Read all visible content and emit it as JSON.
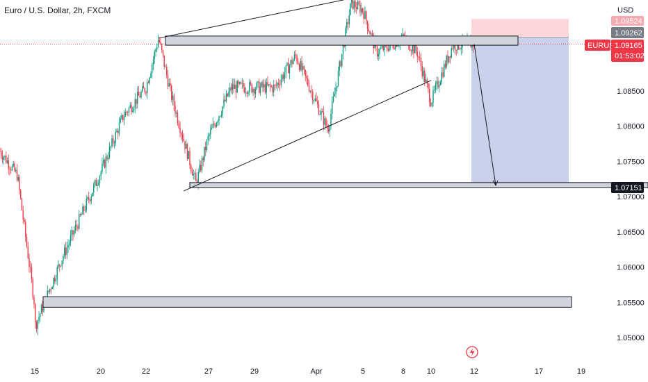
{
  "header": {
    "symbol_title": "Euro / U.S. Dollar, 2h, FXCM"
  },
  "price_scale": {
    "currency": "USD",
    "ticks": [
      "1.05000",
      "1.05500",
      "1.06000",
      "1.06500",
      "1.07000",
      "1.07500",
      "1.08000",
      "1.08500"
    ]
  },
  "time_scale": {
    "ticks": [
      "15",
      "20",
      "22",
      "27",
      "29",
      "Apr",
      "5",
      "8",
      "10",
      "12",
      "17",
      "19"
    ]
  },
  "price_tags": {
    "stop_level": "1.09524",
    "entry_level": "1.09262",
    "symbol_label": "EURUSD",
    "last_price": "1.09165",
    "countdown": "01:53:02",
    "target_level": "1.07151"
  },
  "colors": {
    "up_candle": "#089981",
    "down_candle": "#f23645",
    "short_profit_zone": "#c9d2ea",
    "short_risk_zone": "#fdd6d9",
    "zone_fill": "#d1d4dc",
    "price_line": "#f23645",
    "tag_dark": "#131722",
    "tag_gray": "#787b86",
    "alert_icon": "#f23645"
  },
  "icons": {
    "alert": "lightning-bolt-icon"
  },
  "chart_data": {
    "type": "candlestick",
    "symbol": "EURUSD",
    "timeframe": "2h",
    "ylim": [
      1.0462,
      1.0985
    ],
    "x_ticks": [
      "15",
      "20",
      "22",
      "27",
      "29",
      "Apr",
      "5",
      "8",
      "10",
      "12",
      "17",
      "19"
    ],
    "y_ticks": [
      1.05,
      1.055,
      1.06,
      1.065,
      1.07,
      1.075,
      1.08,
      1.085
    ],
    "key_points": [
      {
        "t": "13 Mar",
        "price": 1.0765
      },
      {
        "t": "14 Mar",
        "price": 1.073
      },
      {
        "t": "15 Mar",
        "price": 1.0545
      },
      {
        "t": "15 Mar",
        "price": 1.0515
      },
      {
        "t": "17 Mar",
        "price": 1.061
      },
      {
        "t": "20 Mar",
        "price": 1.0735
      },
      {
        "t": "21 Mar",
        "price": 1.0815
      },
      {
        "t": "22 Mar",
        "price": 1.0855
      },
      {
        "t": "23 Mar",
        "price": 1.0925
      },
      {
        "t": "24 Mar",
        "price": 1.0845
      },
      {
        "t": "26 Mar",
        "price": 1.0718
      },
      {
        "t": "27 Mar",
        "price": 1.0785
      },
      {
        "t": "28 Mar",
        "price": 1.0855
      },
      {
        "t": "30 Mar",
        "price": 1.0855
      },
      {
        "t": "31 Mar",
        "price": 1.09
      },
      {
        "t": "2 Apr",
        "price": 1.0795
      },
      {
        "t": "3 Apr",
        "price": 1.0885
      },
      {
        "t": "4 Apr",
        "price": 1.0975
      },
      {
        "t": "5 Apr",
        "price": 1.0965
      },
      {
        "t": "6 Apr",
        "price": 1.0905
      },
      {
        "t": "8 Apr",
        "price": 1.0925
      },
      {
        "t": "9 Apr",
        "price": 1.0905
      },
      {
        "t": "10 Apr",
        "price": 1.0835
      },
      {
        "t": "11 Apr",
        "price": 1.0915
      },
      {
        "t": "12 Apr",
        "price": 1.0917
      }
    ],
    "zones": [
      {
        "name": "resistance-zone",
        "price_low": 1.0915,
        "price_high": 1.0928
      },
      {
        "name": "support-zone",
        "price_low": 1.0713,
        "price_high": 1.072
      },
      {
        "name": "demand-zone",
        "price_low": 1.0543,
        "price_high": 1.0558
      }
    ],
    "trendlines": [
      {
        "name": "upper-channel-line",
        "from": {
          "t": "23 Mar",
          "price": 1.0925
        },
        "to": {
          "t": "5 Apr",
          "price": 1.0985
        }
      },
      {
        "name": "lower-channel-line",
        "from": {
          "t": "25 Mar",
          "price": 1.0708
        },
        "to": {
          "t": "10 Apr",
          "price": 1.0865
        }
      }
    ],
    "short_position": {
      "entry": 1.09262,
      "stop": 1.09524,
      "target": 1.07151
    },
    "last_price": 1.09165,
    "countdown": "01:53:02"
  }
}
